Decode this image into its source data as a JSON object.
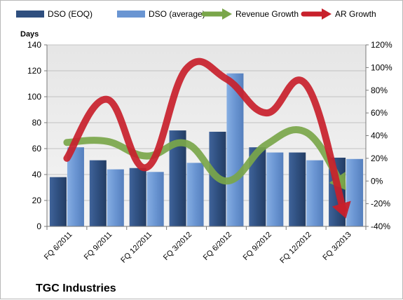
{
  "chart_data": {
    "type": "bar",
    "title": "TGC Industries",
    "ylabel": "Days",
    "ylim": [
      0,
      140
    ],
    "y2lim": [
      -40,
      120
    ],
    "y_ticks": [
      0,
      20,
      40,
      60,
      80,
      100,
      120,
      140
    ],
    "y2_ticks": [
      -40,
      -20,
      0,
      20,
      40,
      60,
      80,
      100,
      120
    ],
    "y2_tick_labels": [
      "-40%",
      "-20%",
      "0%",
      "20%",
      "40%",
      "60%",
      "80%",
      "100%",
      "120%"
    ],
    "grid": true,
    "legend_position": "top",
    "categories": [
      "FQ 6/2011",
      "FQ 9/2011",
      "FQ 12/2011",
      "FQ 3/2012",
      "FQ 6/2012",
      "FQ 9/2012",
      "FQ 12/2012",
      "FQ 3/2013"
    ],
    "series": [
      {
        "name": "DSO (EOQ)",
        "kind": "bar",
        "axis": "left",
        "color": "#2f4f7f",
        "values": [
          38,
          51,
          45,
          74,
          73,
          61,
          57,
          53
        ]
      },
      {
        "name": "DSO (average)",
        "kind": "bar",
        "axis": "left",
        "color": "#6a95d2",
        "values": [
          61,
          44,
          42,
          49,
          118,
          57,
          51,
          52
        ]
      },
      {
        "name": "Revenue Growth",
        "kind": "line-arrow",
        "axis": "right",
        "color": "#7aa64a",
        "values": [
          34,
          35,
          22,
          33,
          0,
          32,
          43,
          -8
        ]
      },
      {
        "name": "AR Growth",
        "kind": "line-arrow",
        "axis": "right",
        "color": "#c8202b",
        "values": [
          20,
          72,
          12,
          99,
          90,
          60,
          85,
          -33
        ]
      }
    ]
  }
}
